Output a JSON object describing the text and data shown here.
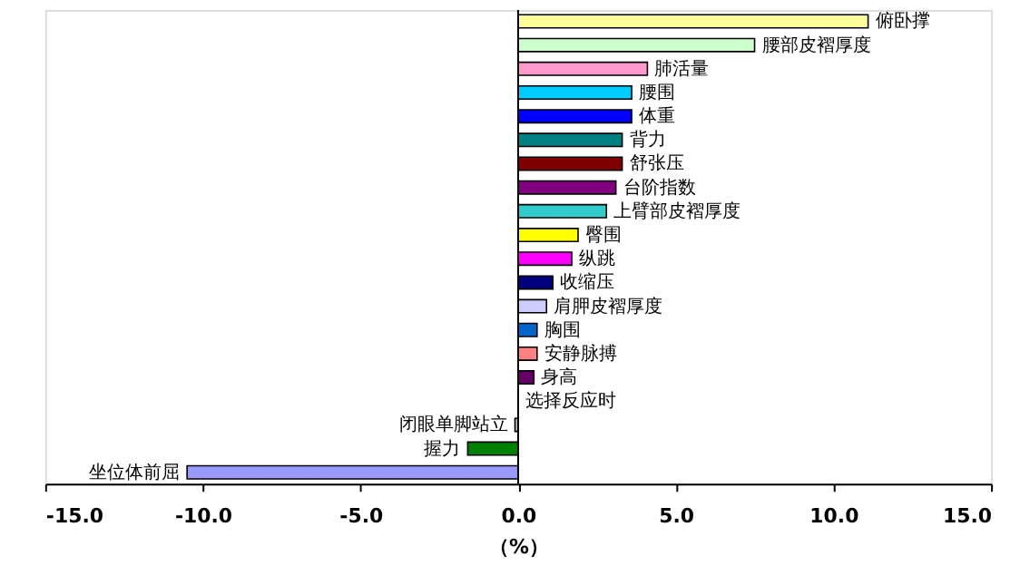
{
  "chart_data": {
    "type": "bar",
    "orientation": "horizontal",
    "xlabel": "（%）",
    "categories": [
      "俯卧撑",
      "腰部皮褶厚度",
      "肺活量",
      "腰围",
      "体重",
      "背力",
      "舒张压",
      "台阶指数",
      "上臂部皮褶厚度",
      "臀围",
      "纵跳",
      "收缩压",
      "肩胛皮褶厚度",
      "胸围",
      "安静脉搏",
      "身高",
      "选择反应时",
      "闭眼单脚站立",
      "握力",
      "坐位体前屈"
    ],
    "values": [
      11.1,
      7.5,
      4.1,
      3.6,
      3.6,
      3.3,
      3.3,
      3.1,
      2.8,
      1.9,
      1.7,
      1.1,
      0.9,
      0.6,
      0.6,
      0.5,
      0,
      -0.1,
      -1.6,
      -10.5
    ],
    "colors": [
      "#ffff99",
      "#ccffcc",
      "#ff99cc",
      "#00ccff",
      "#0000ff",
      "#008080",
      "#800000",
      "#800080",
      "#33cccc",
      "#ffff00",
      "#ff00ff",
      "#000080",
      "#ccccff",
      "#0066cc",
      "#ff8080",
      "#660066",
      "#ffffff",
      "#c0c0c0",
      "#008000",
      "#9999ff"
    ],
    "xlim": [
      -15,
      15
    ],
    "xticks": [
      {
        "value": -15,
        "label": "-15.0"
      },
      {
        "value": -10,
        "label": "-10.0"
      },
      {
        "value": -5,
        "label": "-5.0"
      },
      {
        "value": 0,
        "label": "0.0"
      },
      {
        "value": 5,
        "label": "5.0"
      },
      {
        "value": 10,
        "label": "10.0"
      },
      {
        "value": 15,
        "label": "15.0"
      }
    ],
    "tick_labels": "x",
    "grid": false,
    "legend": false
  }
}
